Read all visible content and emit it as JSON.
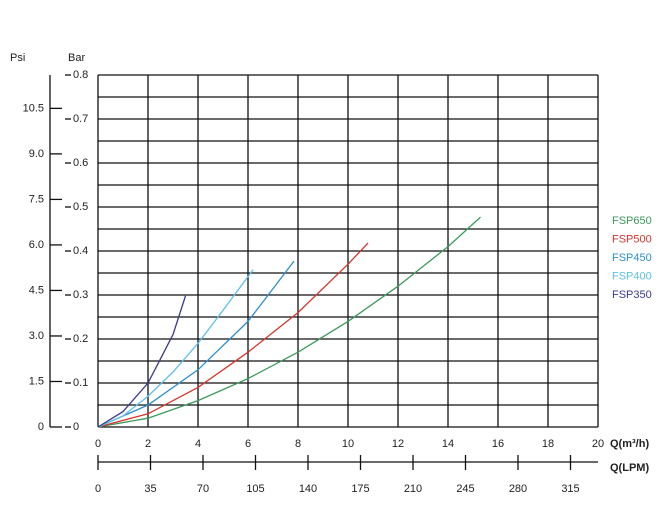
{
  "chart_data": {
    "type": "line",
    "y_label": "Bar",
    "y2_label": "Psi",
    "x_label": "Q(m³/h)",
    "x2_label": "Q(LPM)",
    "xlim": [
      0,
      20
    ],
    "xticks": [
      0,
      2,
      4,
      6,
      8,
      10,
      12,
      14,
      16,
      18,
      20
    ],
    "x2lim": [
      0,
      333.33
    ],
    "x2ticks": [
      0,
      35,
      70,
      105,
      140,
      175,
      210,
      245,
      280,
      315
    ],
    "ylim": [
      0,
      0.8
    ],
    "yticks": [
      0,
      0.1,
      0.2,
      0.3,
      0.4,
      0.5,
      0.6,
      0.7,
      0.8
    ],
    "y2lim": [
      0,
      11.6
    ],
    "y2ticks": [
      0,
      1.5,
      {
        "value": 3,
        "label": "3.0"
      },
      4.5,
      {
        "value": 6,
        "label": "6.0"
      },
      7.5,
      {
        "value": 9,
        "label": "9.0"
      },
      10.5
    ],
    "grid": true,
    "legend": "right",
    "series": [
      {
        "name": "FSP650",
        "color": "#3a9a5a",
        "x": [
          0,
          2,
          4,
          6,
          8,
          10,
          12,
          14,
          15.3
        ],
        "values": [
          0,
          0.02,
          0.06,
          0.11,
          0.17,
          0.24,
          0.32,
          0.41,
          0.477
        ]
      },
      {
        "name": "FSP500",
        "color": "#d9342b",
        "x": [
          0,
          2,
          4,
          6,
          8,
          10,
          10.8
        ],
        "values": [
          0,
          0.03,
          0.09,
          0.17,
          0.26,
          0.37,
          0.418
        ]
      },
      {
        "name": "FSP450",
        "color": "#2c8fd0",
        "x": [
          0,
          2,
          4,
          6,
          7.84
        ],
        "values": [
          0,
          0.05,
          0.13,
          0.24,
          0.377
        ]
      },
      {
        "name": "FSP400",
        "color": "#5bc0eb",
        "x": [
          0,
          1,
          2,
          3,
          4,
          5,
          6.2
        ],
        "values": [
          0,
          0.025,
          0.07,
          0.125,
          0.19,
          0.265,
          0.357
        ]
      },
      {
        "name": "FSP350",
        "color": "#3a3a8c",
        "x": [
          0,
          1,
          2,
          3,
          3.5
        ],
        "values": [
          0,
          0.035,
          0.1,
          0.21,
          0.298
        ]
      }
    ]
  }
}
